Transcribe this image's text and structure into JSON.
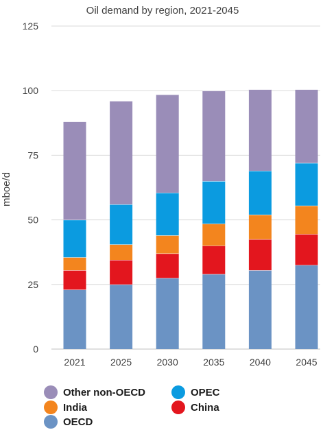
{
  "chart_data": {
    "type": "bar",
    "stacked": true,
    "title": "Oil demand by region, 2021-2045",
    "xlabel": "",
    "ylabel": "mboe/d",
    "ylim": [
      0,
      125
    ],
    "yticks": [
      0,
      25,
      50,
      75,
      100,
      125
    ],
    "grid": true,
    "legend_position": "bottom",
    "categories": [
      "2021",
      "2025",
      "2030",
      "2035",
      "2040",
      "2045"
    ],
    "series": [
      {
        "name": "OECD",
        "color": "#6b93c4",
        "values": [
          23,
          25,
          27.5,
          29,
          30.5,
          32.5
        ]
      },
      {
        "name": "China",
        "color": "#e3161e",
        "values": [
          7.5,
          9.5,
          9.5,
          11,
          12,
          12
        ]
      },
      {
        "name": "India",
        "color": "#f3851e",
        "values": [
          5,
          6,
          7,
          8.5,
          9.5,
          11
        ]
      },
      {
        "name": "OPEC",
        "color": "#0b9be0",
        "values": [
          14.5,
          15.5,
          16.5,
          16.5,
          17,
          16.5
        ]
      },
      {
        "name": "Other non-OECD",
        "color": "#9a8db8",
        "values": [
          38,
          40,
          38,
          35,
          31.5,
          28.5
        ]
      }
    ]
  },
  "legend": [
    {
      "label": "Other non-OECD",
      "color": "#9a8db8"
    },
    {
      "label": "OPEC",
      "color": "#0b9be0"
    },
    {
      "label": "India",
      "color": "#f3851e"
    },
    {
      "label": "China",
      "color": "#e3161e"
    },
    {
      "label": "OECD",
      "color": "#6b93c4"
    }
  ]
}
